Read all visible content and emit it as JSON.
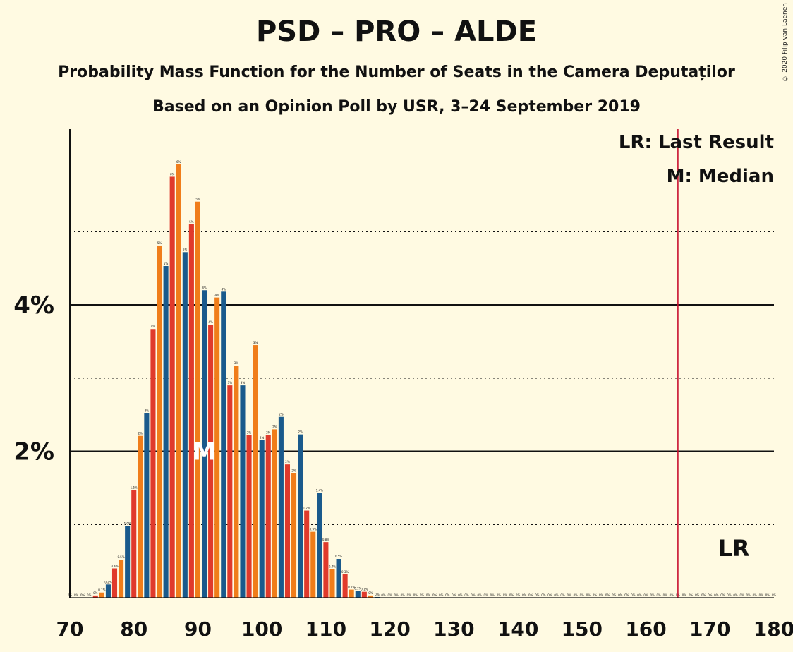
{
  "title": "PSD – PRO – ALDE",
  "subtitle1": "Probability Mass Function for the Number of Seats in the Camera Deputaților",
  "subtitle2": "Based on an Opinion Poll by USR, 3–24 September 2019",
  "copyright": "© 2020 Filip van Laenen",
  "colors": {
    "background": "#fffae2",
    "series": [
      "#1a5a8c",
      "#e03a2c",
      "#f07d1a"
    ],
    "last_result_line": "#c8102e"
  },
  "chart_data": {
    "type": "bar",
    "xlim": [
      70,
      180
    ],
    "ylim": [
      0,
      6.4
    ],
    "xticks": [
      70,
      80,
      90,
      100,
      110,
      120,
      130,
      140,
      150,
      160,
      170,
      180
    ],
    "yticks": [
      {
        "value": 2,
        "label": "2%"
      },
      {
        "value": 4,
        "label": "4%"
      }
    ],
    "dotted_gridlines": [
      1,
      3,
      5
    ],
    "x": [
      70,
      71,
      72,
      73,
      74,
      75,
      76,
      77,
      78,
      79,
      80,
      81,
      82,
      83,
      84,
      85,
      86,
      87,
      88,
      89,
      90,
      91,
      92,
      93,
      94,
      95,
      96,
      97,
      98,
      99,
      100,
      101,
      102,
      103,
      104,
      105,
      106,
      107,
      108,
      109,
      110,
      111,
      112,
      113,
      114,
      115,
      116,
      117,
      118,
      119,
      120,
      121,
      122,
      123,
      124,
      125,
      126,
      127,
      128,
      129,
      130,
      131,
      132,
      133,
      134,
      135,
      136,
      137,
      138,
      139,
      140,
      141,
      142,
      143,
      144,
      145,
      146,
      147,
      148,
      149,
      150,
      151,
      152,
      153,
      154,
      155,
      156,
      157,
      158,
      159,
      160,
      161,
      162,
      163,
      164,
      165,
      166,
      167,
      168,
      169,
      170,
      171,
      172,
      173,
      174,
      175,
      176,
      177,
      178,
      179,
      180
    ],
    "values": [
      0,
      0,
      0,
      0,
      0.03,
      0.07,
      0.18,
      0.4,
      0.52,
      0.98,
      1.47,
      2.21,
      2.52,
      3.67,
      4.81,
      4.53,
      5.75,
      5.92,
      4.72,
      5.1,
      5.41,
      4.2,
      3.73,
      4.1,
      4.18,
      2.9,
      3.17,
      2.9,
      2.22,
      3.45,
      2.15,
      2.22,
      2.3,
      2.47,
      1.82,
      1.7,
      2.23,
      1.19,
      0.9,
      1.43,
      0.76,
      0.39,
      0.53,
      0.32,
      0.11,
      0.09,
      0.08,
      0.03,
      0.01,
      0,
      0,
      0,
      0,
      0,
      0,
      0,
      0,
      0,
      0,
      0,
      0,
      0,
      0,
      0,
      0,
      0,
      0,
      0,
      0,
      0,
      0,
      0,
      0,
      0,
      0,
      0,
      0,
      0,
      0,
      0,
      0,
      0,
      0,
      0,
      0,
      0,
      0,
      0,
      0,
      0,
      0,
      0,
      0,
      0,
      0,
      0,
      0,
      0,
      0,
      0,
      0,
      0,
      0,
      0,
      0,
      0,
      0,
      0,
      0,
      0,
      0
    ],
    "bar_labels": [
      "0%",
      "0%",
      "0%",
      "0%",
      "0%",
      "0.1%",
      "0.2%",
      "0.4%",
      "0.5%",
      "1.0%",
      "1.5%",
      "2%",
      "3%",
      "4%",
      "5%",
      "5%",
      "6%",
      "6%",
      "5%",
      "5%",
      "5%",
      "4%",
      "4%",
      "4%",
      "4%",
      "3%",
      "3%",
      "3%",
      "2%",
      "3%",
      "2%",
      "2%",
      "2%",
      "2%",
      "2%",
      "2%",
      "2%",
      "1.2%",
      "0.9%",
      "1.4%",
      "0.8%",
      "0.4%",
      "0.5%",
      "0.3%",
      "0.1%",
      "0.1%",
      "0.1%",
      "0%",
      "0%",
      "0%",
      "0%",
      "0%",
      "0%",
      "0%",
      "0%",
      "0%",
      "0%",
      "0%",
      "0%",
      "0%",
      "0%",
      "0%",
      "0%",
      "0%",
      "0%",
      "0%",
      "0%",
      "0%",
      "0%",
      "0%",
      "0%",
      "0%",
      "0%",
      "0%",
      "0%",
      "0%",
      "0%",
      "0%",
      "0%",
      "0%",
      "0%",
      "0%",
      "0%",
      "0%",
      "0%",
      "0%",
      "0%",
      "0%",
      "0%",
      "0%",
      "0%",
      "0%",
      "0%",
      "0%",
      "0%",
      "0%",
      "0%",
      "0%",
      "0%",
      "0%",
      "0%",
      "0%",
      "0%",
      "0%",
      "0%",
      "0%",
      "0%",
      "0%",
      "0%",
      "0%",
      "0%"
    ],
    "median": {
      "x": 91,
      "label": "M"
    },
    "last_result": {
      "x": 165,
      "label": "LR"
    },
    "legend": [
      "LR: Last Result",
      "M: Median"
    ]
  }
}
